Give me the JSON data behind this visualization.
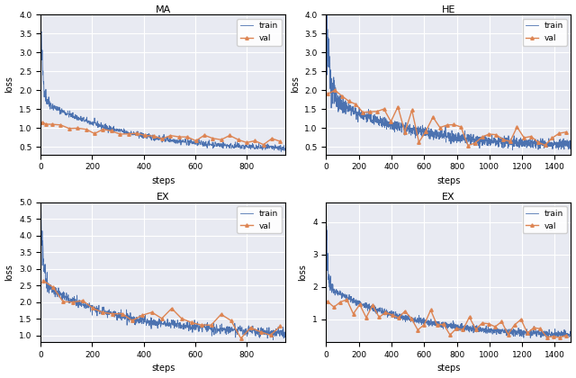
{
  "subplots": [
    {
      "title": "MA",
      "xlabel": "steps",
      "ylabel": "loss",
      "xlim": [
        0,
        950
      ],
      "ylim": [
        0.3,
        4.0
      ],
      "yticks": [
        0.5,
        1.0,
        1.5,
        2.0,
        2.5,
        3.0,
        3.5,
        4.0
      ],
      "xticks": [
        0,
        200,
        400,
        600,
        800
      ],
      "train_steps": 950,
      "train_color": "#4c72b0",
      "val_color": "#dd8452"
    },
    {
      "title": "HE",
      "xlabel": "steps",
      "ylabel": "loss",
      "xlim": [
        0,
        1500
      ],
      "ylim": [
        0.3,
        4.0
      ],
      "yticks": [
        0.5,
        1.0,
        1.5,
        2.0,
        2.5,
        3.0,
        3.5,
        4.0
      ],
      "xticks": [
        0,
        200,
        400,
        600,
        800,
        1000,
        1200,
        1400
      ],
      "train_steps": 1500,
      "train_color": "#4c72b0",
      "val_color": "#dd8452"
    },
    {
      "title": "EX",
      "xlabel": "steps",
      "ylabel": "loss",
      "xlim": [
        0,
        950
      ],
      "ylim": [
        0.8,
        5.0
      ],
      "yticks": [
        1.0,
        1.5,
        2.0,
        2.5,
        3.0,
        3.5,
        4.0,
        4.5,
        5.0
      ],
      "xticks": [
        0,
        200,
        400,
        600,
        800
      ],
      "train_steps": 950,
      "train_color": "#4c72b0",
      "val_color": "#dd8452"
    },
    {
      "title": "EX",
      "xlabel": "steps",
      "ylabel": "loss",
      "xlim": [
        0,
        1500
      ],
      "ylim": [
        0.3,
        4.6
      ],
      "yticks": [
        1,
        2,
        3,
        4
      ],
      "xticks": [
        0,
        200,
        400,
        600,
        800,
        1000,
        1200,
        1400
      ],
      "train_steps": 1500,
      "train_color": "#4c72b0",
      "val_color": "#dd8452"
    }
  ],
  "bg_color": "#e8eaf2",
  "grid_color": "white",
  "fig_facecolor": "white"
}
